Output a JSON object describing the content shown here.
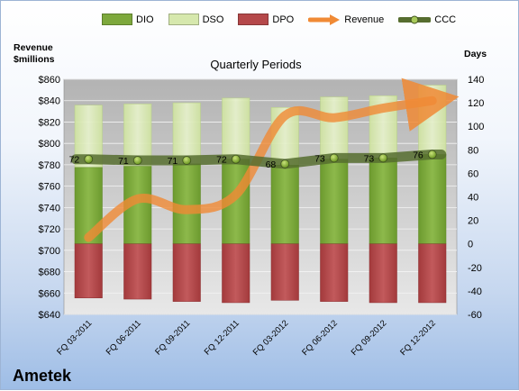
{
  "company": "Ametek",
  "chart_data": {
    "type": "bar",
    "title": "Quarterly Periods",
    "categories": [
      "FQ 03-2011",
      "FQ 06-2011",
      "FQ 09-2011",
      "FQ 12-2011",
      "FQ 03-2012",
      "FQ 06-2012",
      "FQ 09-2012",
      "FQ 12-2012"
    ],
    "left_axis": {
      "label": "Revenue $millions",
      "min": 640,
      "max": 860,
      "step": 20,
      "ticks": [
        "$640",
        "$660",
        "$680",
        "$700",
        "$720",
        "$740",
        "$760",
        "$780",
        "$800",
        "$820",
        "$840",
        "$860"
      ]
    },
    "right_axis": {
      "label": "Days",
      "min": -60,
      "max": 140,
      "step": 20,
      "ticks": [
        "-60",
        "-40",
        "-20",
        "0",
        "20",
        "40",
        "60",
        "80",
        "100",
        "120",
        "140"
      ]
    },
    "legend": {
      "position": "top",
      "items": [
        {
          "name": "DIO",
          "color": "#7da83c"
        },
        {
          "name": "DSO",
          "color": "#d6e8ad"
        },
        {
          "name": "DPO",
          "color": "#b5484a"
        },
        {
          "name": "Revenue",
          "color": "#f08a35"
        },
        {
          "name": "CCC",
          "color": "#566d2f"
        }
      ]
    },
    "series": [
      {
        "name": "DIO",
        "axis": "days",
        "values": [
          65,
          66,
          68,
          72,
          67,
          72,
          73,
          76
        ]
      },
      {
        "name": "DSO",
        "axis": "days",
        "values": [
          53,
          53,
          52,
          52,
          49,
          53,
          53,
          59
        ]
      },
      {
        "name": "DPO",
        "axis": "days",
        "values": [
          -46,
          -47,
          -49,
          -50,
          -48,
          -49,
          -50,
          -50
        ]
      },
      {
        "name": "Revenue",
        "axis": "revenue",
        "values": [
          712,
          748,
          738,
          752,
          826,
          824,
          833,
          840
        ]
      },
      {
        "name": "CCC",
        "axis": "days",
        "values": [
          72,
          71,
          71,
          72,
          68,
          73,
          73,
          76
        ]
      }
    ],
    "ccc_labels": [
      "72",
      "71",
      "71",
      "72",
      "68",
      "73",
      "73",
      "76"
    ],
    "grid": true
  }
}
